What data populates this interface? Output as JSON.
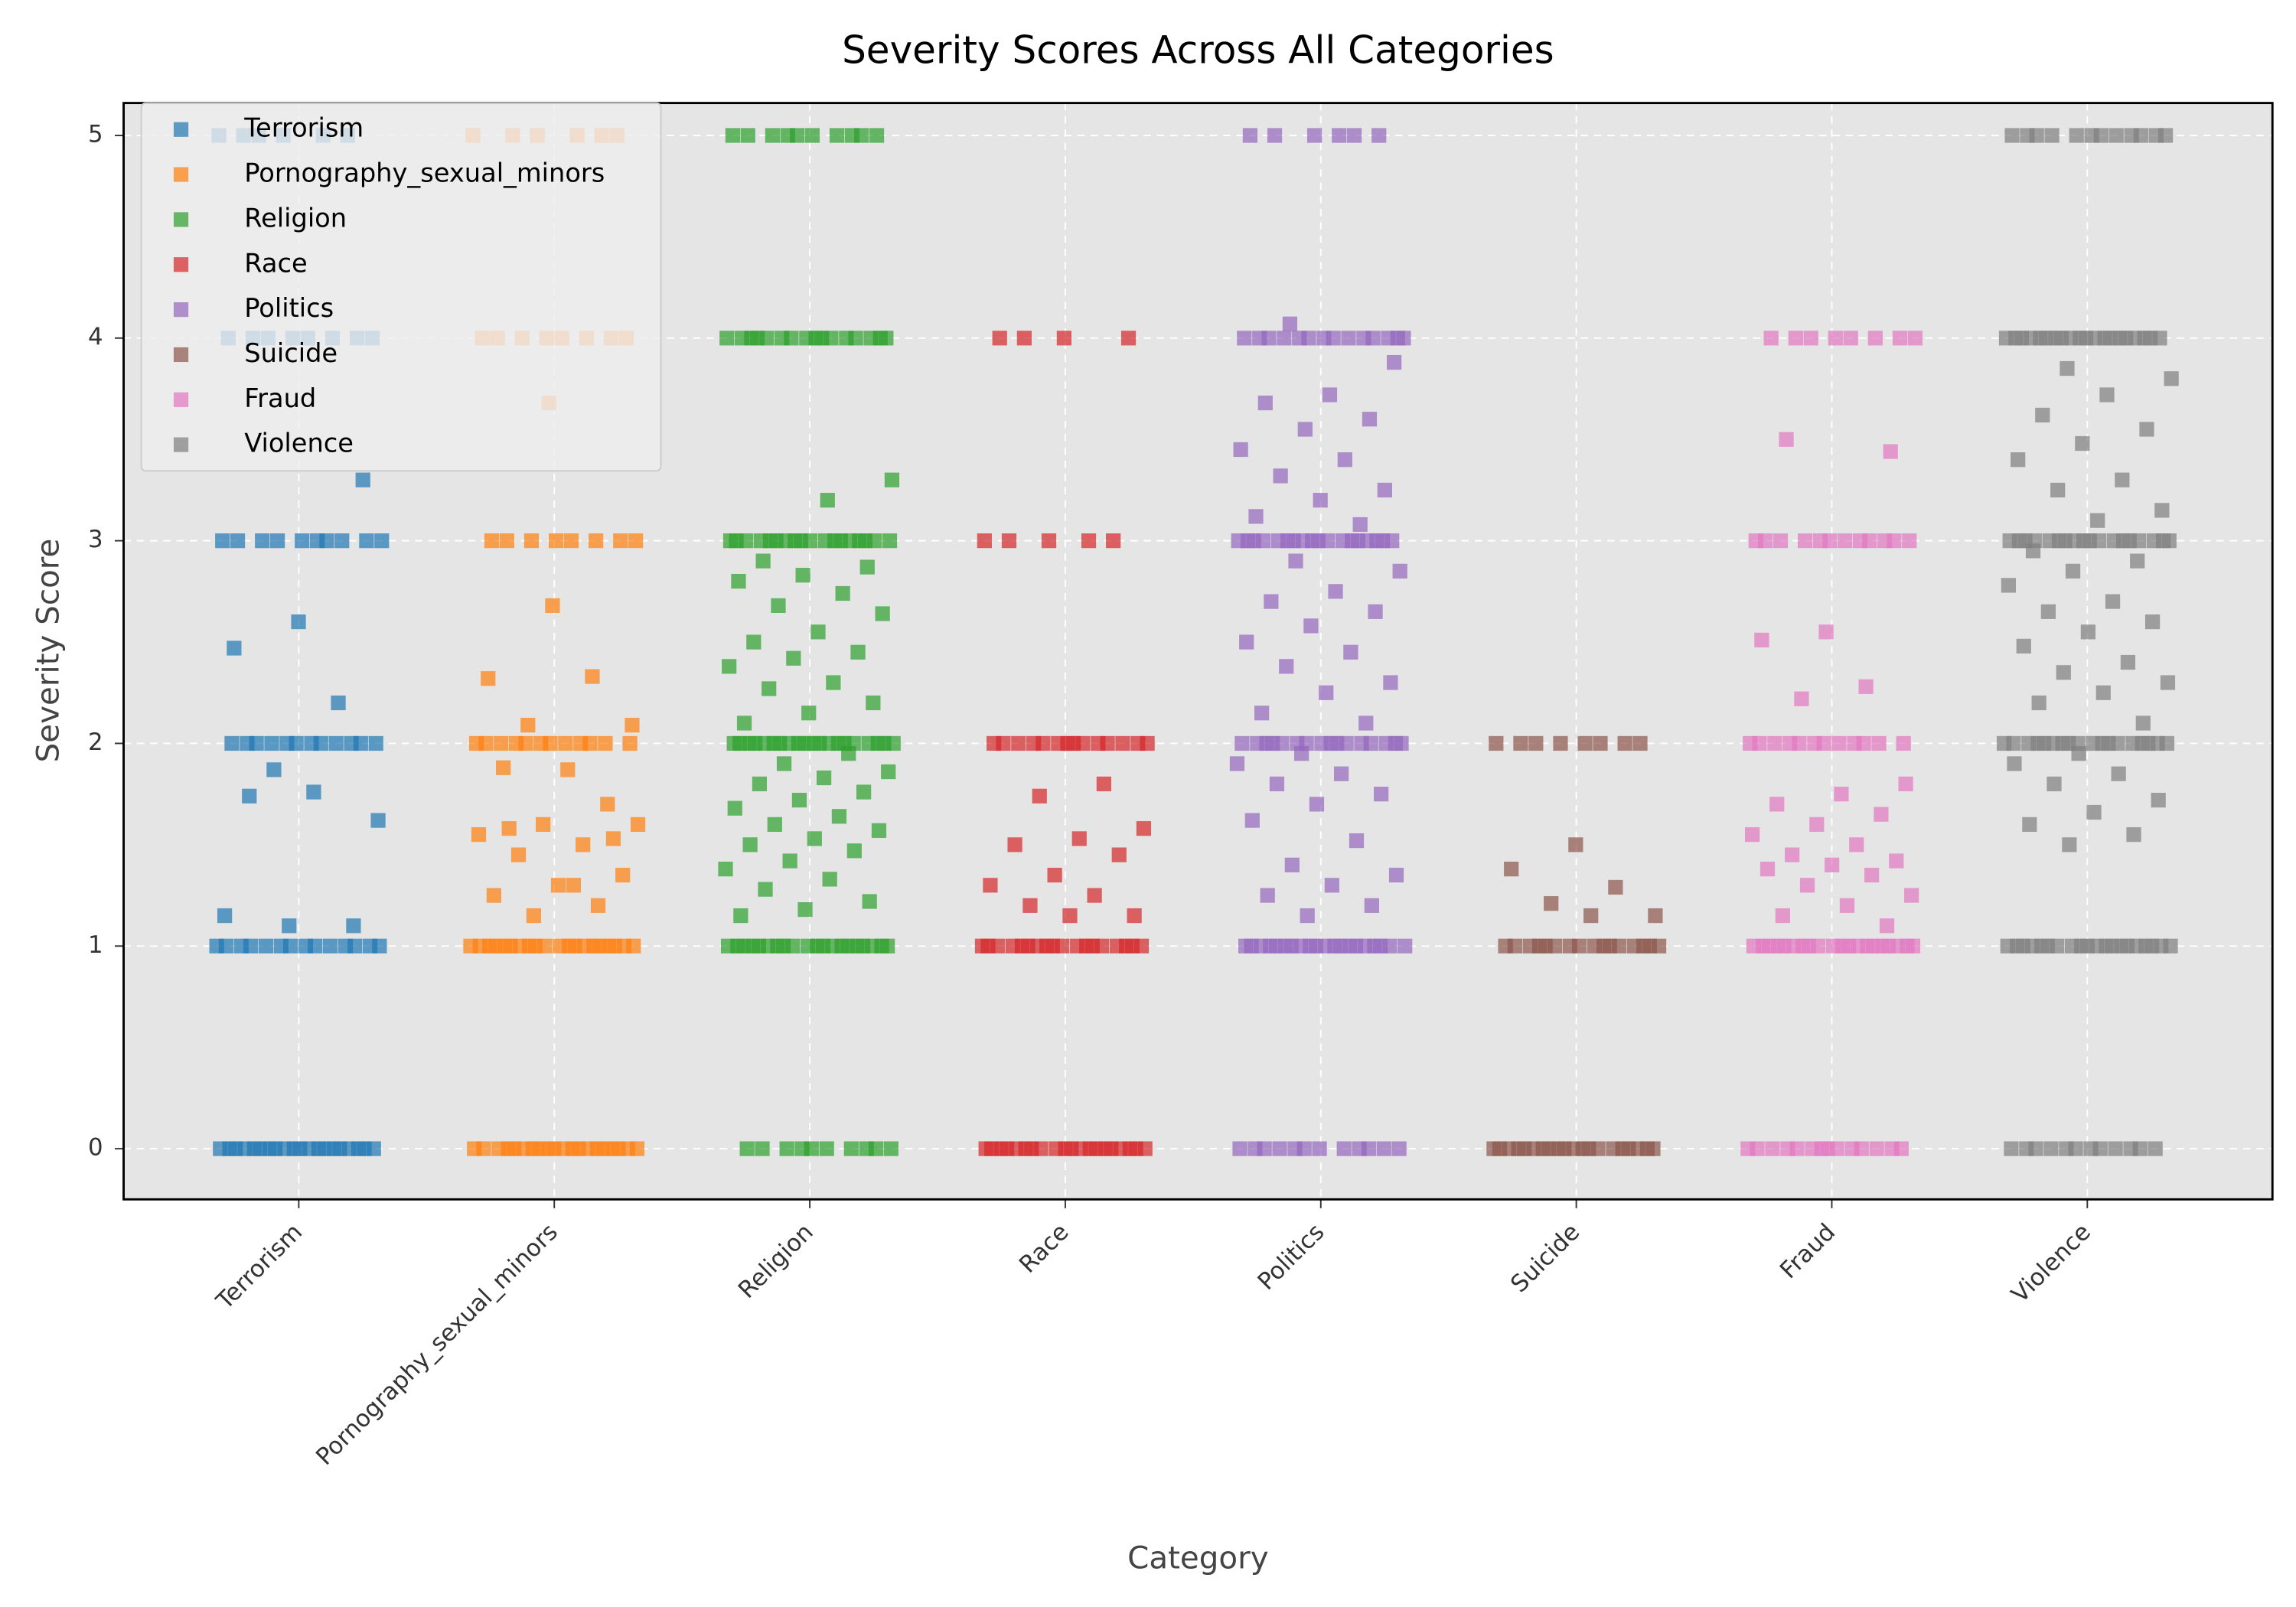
{
  "chart_data": {
    "type": "strip",
    "title": "Severity Scores Across All Categories",
    "xlabel": "Category",
    "ylabel": "Severity Score",
    "categories": [
      "Terrorism",
      "Pornography_sexual_minors",
      "Religion",
      "Race",
      "Politics",
      "Suicide",
      "Fraud",
      "Violence"
    ],
    "ylim": [
      -0.25,
      5.16
    ],
    "yticks": [
      0,
      1,
      2,
      3,
      4,
      5
    ],
    "grid": true,
    "legend": "upper left",
    "series": [
      {
        "name": "Terrorism",
        "color": "#1f77b4",
        "values": [
          0,
          0,
          0,
          0,
          0,
          0,
          0,
          0,
          0,
          0,
          0,
          0,
          0,
          0,
          0,
          0,
          0,
          0,
          0,
          0,
          1,
          1,
          1,
          1,
          1,
          1,
          1,
          1,
          1,
          1,
          1,
          1,
          1,
          1,
          2,
          2,
          2,
          2,
          2,
          2,
          2,
          2,
          2,
          2,
          2,
          2,
          3,
          3,
          3,
          3,
          3,
          3,
          3,
          3,
          3,
          3,
          4,
          4,
          4,
          4,
          4,
          4,
          4,
          4,
          5,
          5,
          5,
          5,
          5,
          5,
          3.3,
          2.6,
          2.47,
          2.2,
          1.87,
          1.62,
          1.76,
          1.74,
          1.1,
          1.1,
          1.15
        ]
      },
      {
        "name": "Pornography_sexual_minors",
        "color": "#ff7f0e",
        "values": [
          0,
          0,
          0,
          0,
          0,
          0,
          0,
          0,
          0,
          0,
          0,
          0,
          0,
          0,
          0,
          0,
          0,
          0,
          0,
          0,
          1,
          1,
          1,
          1,
          1,
          1,
          1,
          1,
          1,
          1,
          1,
          1,
          1,
          1,
          1,
          1,
          1,
          1,
          1,
          1,
          2,
          2,
          2,
          2,
          2,
          2,
          2,
          2,
          2,
          2,
          2,
          2,
          3,
          3,
          3,
          3,
          3,
          3,
          3,
          3,
          4,
          4,
          4,
          4,
          4,
          4,
          4,
          4,
          5,
          5,
          5,
          5,
          5,
          5,
          2.68,
          2.32,
          2.33,
          2.09,
          2.09,
          1.87,
          1.88,
          1.7,
          1.6,
          1.55,
          1.5,
          1.45,
          1.35,
          1.3,
          1.25,
          1.2,
          1.15,
          1.6,
          1.3,
          1.58,
          1.53,
          3.68
        ]
      },
      {
        "name": "Religion",
        "color": "#2ca02c",
        "values": [
          0,
          0,
          0,
          0,
          0,
          0,
          0,
          0,
          0,
          0,
          1,
          1,
          1,
          1,
          1,
          1,
          1,
          1,
          1,
          1,
          1,
          1,
          1,
          1,
          1,
          1,
          1,
          1,
          1,
          1,
          2,
          2,
          2,
          2,
          2,
          2,
          2,
          2,
          2,
          2,
          2,
          2,
          2,
          2,
          2,
          2,
          2,
          2,
          2,
          2,
          3,
          3,
          3,
          3,
          3,
          3,
          3,
          3,
          3,
          3,
          3,
          3,
          3,
          3,
          3,
          3,
          3,
          3,
          4,
          4,
          4,
          4,
          4,
          4,
          4,
          4,
          4,
          4,
          4,
          4,
          4,
          4,
          4,
          4,
          5,
          5,
          5,
          5,
          5,
          5,
          5,
          5,
          5,
          5,
          3.3,
          3.2,
          2.9,
          2.87,
          2.83,
          2.8,
          2.74,
          2.68,
          2.64,
          2.55,
          2.5,
          2.45,
          2.42,
          2.38,
          2.3,
          2.27,
          2.2,
          2.15,
          2.1,
          1.95,
          1.9,
          1.86,
          1.83,
          1.8,
          1.76,
          1.72,
          1.68,
          1.64,
          1.6,
          1.57,
          1.53,
          1.5,
          1.47,
          1.42,
          1.38,
          1.33,
          1.28,
          1.22,
          1.18,
          1.15
        ]
      },
      {
        "name": "Race",
        "color": "#d62728",
        "values": [
          0,
          0,
          0,
          0,
          0,
          0,
          0,
          0,
          0,
          0,
          0,
          0,
          0,
          0,
          0,
          0,
          0,
          0,
          0,
          0,
          1,
          1,
          1,
          1,
          1,
          1,
          1,
          1,
          1,
          1,
          1,
          1,
          1,
          1,
          1,
          1,
          1,
          1,
          2,
          2,
          2,
          2,
          2,
          2,
          2,
          2,
          2,
          2,
          2,
          2,
          2,
          2,
          3,
          3,
          3,
          3,
          3,
          4,
          4,
          4,
          4,
          1.8,
          1.74,
          1.58,
          1.53,
          1.5,
          1.45,
          1.35,
          1.3,
          1.25,
          1.2,
          1.15,
          1.15
        ]
      },
      {
        "name": "Politics",
        "color": "#9467bd",
        "values": [
          0,
          0,
          0,
          0,
          0,
          0,
          0,
          0,
          0,
          0,
          0,
          0,
          1,
          1,
          1,
          1,
          1,
          1,
          1,
          1,
          1,
          1,
          1,
          1,
          1,
          1,
          1,
          1,
          1,
          1,
          1,
          1,
          2,
          2,
          2,
          2,
          2,
          2,
          2,
          2,
          2,
          2,
          2,
          2,
          2,
          2,
          2,
          2,
          3,
          3,
          3,
          3,
          3,
          3,
          3,
          3,
          3,
          3,
          3,
          3,
          3,
          3,
          3,
          3,
          3,
          3,
          4,
          4,
          4,
          4,
          4,
          4,
          4,
          4,
          4,
          4,
          4,
          4,
          4,
          4,
          5,
          5,
          5,
          5,
          5,
          5,
          4.07,
          3.88,
          3.72,
          3.68,
          3.6,
          3.55,
          3.45,
          3.4,
          3.32,
          3.25,
          3.2,
          3.12,
          3.08,
          2.9,
          2.85,
          2.75,
          2.7,
          2.65,
          2.58,
          2.5,
          2.45,
          2.38,
          2.3,
          2.25,
          2.15,
          2.1,
          1.95,
          1.9,
          1.85,
          1.8,
          1.75,
          1.7,
          1.62,
          1.52,
          1.4,
          1.35,
          1.3,
          1.25,
          1.2,
          1.15
        ]
      },
      {
        "name": "Suicide",
        "color": "#8c564b",
        "values": [
          0,
          0,
          0,
          0,
          0,
          0,
          0,
          0,
          0,
          0,
          0,
          0,
          0,
          0,
          0,
          0,
          0,
          0,
          0,
          0,
          1,
          1,
          1,
          1,
          1,
          1,
          1,
          1,
          1,
          1,
          1,
          1,
          1,
          1,
          1,
          1,
          2,
          2,
          2,
          2,
          2,
          2,
          2,
          2,
          1.5,
          1.38,
          1.29,
          1.21,
          1.15,
          1.15
        ]
      },
      {
        "name": "Fraud",
        "color": "#e377c2",
        "values": [
          0,
          0,
          0,
          0,
          0,
          0,
          0,
          0,
          0,
          0,
          0,
          0,
          0,
          0,
          1,
          1,
          1,
          1,
          1,
          1,
          1,
          1,
          1,
          1,
          1,
          1,
          1,
          1,
          1,
          1,
          1,
          1,
          1,
          1,
          2,
          2,
          2,
          2,
          2,
          2,
          2,
          2,
          2,
          2,
          2,
          2,
          3,
          3,
          3,
          3,
          3,
          3,
          3,
          3,
          3,
          3,
          3,
          3,
          4,
          4,
          4,
          4,
          4,
          4,
          4,
          4,
          3.5,
          3.44,
          2.55,
          2.51,
          2.28,
          2.22,
          1.8,
          1.75,
          1.7,
          1.65,
          1.6,
          1.55,
          1.5,
          1.45,
          1.42,
          1.4,
          1.38,
          1.35,
          1.3,
          1.25,
          1.2,
          1.15,
          1.1
        ]
      },
      {
        "name": "Violence",
        "color": "#7f7f7f",
        "values": [
          0,
          0,
          0,
          0,
          0,
          0,
          0,
          0,
          0,
          0,
          0,
          0,
          1,
          1,
          1,
          1,
          1,
          1,
          1,
          1,
          1,
          1,
          1,
          1,
          1,
          1,
          1,
          1,
          1,
          1,
          1,
          1,
          2,
          2,
          2,
          2,
          2,
          2,
          2,
          2,
          2,
          2,
          2,
          2,
          2,
          2,
          2,
          2,
          2,
          2,
          3,
          3,
          3,
          3,
          3,
          3,
          3,
          3,
          3,
          3,
          3,
          3,
          3,
          3,
          3,
          3,
          3,
          3,
          4,
          4,
          4,
          4,
          4,
          4,
          4,
          4,
          4,
          4,
          4,
          4,
          4,
          4,
          4,
          4,
          4,
          4,
          4,
          4,
          5,
          5,
          5,
          5,
          5,
          5,
          5,
          5,
          5,
          5,
          5,
          5,
          3.85,
          3.8,
          3.72,
          3.62,
          3.55,
          3.48,
          3.4,
          3.3,
          3.25,
          3.15,
          3.1,
          2.95,
          2.9,
          2.85,
          2.78,
          2.7,
          2.65,
          2.6,
          2.55,
          2.48,
          2.4,
          2.35,
          2.3,
          2.25,
          2.2,
          2.1,
          1.95,
          1.9,
          1.85,
          1.8,
          1.72,
          1.66,
          1.6,
          1.55,
          1.5
        ]
      }
    ]
  }
}
